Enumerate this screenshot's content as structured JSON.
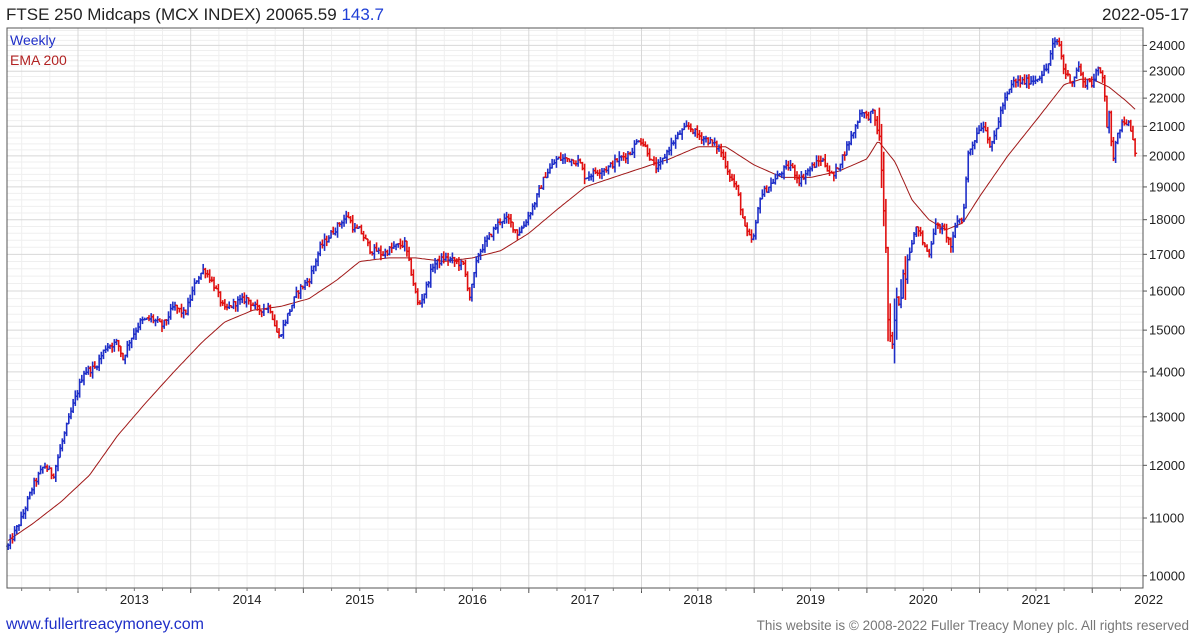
{
  "header": {
    "title": "FTSE 250 Midcaps (MCX INDEX)",
    "last_value": "20065.59",
    "change": "143.7",
    "date": "2022-05-17"
  },
  "legend": {
    "weekly": "Weekly",
    "ema": "EMA 200"
  },
  "footer": {
    "url": "www.fullertreacymoney.com",
    "copyright": "This website is © 2008-2022 Fuller Treacy Money plc. All rights reserved"
  },
  "colors": {
    "up": "#1f2fc8",
    "down": "#e01010",
    "ema": "#a01818",
    "grid": "#d8d8d8",
    "minor_grid": "#efefef"
  },
  "chart_data": {
    "type": "line",
    "frequency": "weekly",
    "style": "ohlc-bars",
    "y_scale": "log",
    "ylim": [
      9800,
      24700
    ],
    "xlim": [
      2012.37,
      2022.45
    ],
    "y_ticks": [
      10000,
      11000,
      12000,
      13000,
      14000,
      15000,
      16000,
      17000,
      18000,
      19000,
      20000,
      21000,
      22000,
      23000,
      24000
    ],
    "x_ticks": [
      2013,
      2014,
      2015,
      2016,
      2017,
      2018,
      2019,
      2020,
      2021,
      2022
    ],
    "grid": true,
    "legend_position": "top-left",
    "series": [
      {
        "name": "Weekly",
        "x": [
          2012.38,
          2012.5,
          2012.6,
          2012.7,
          2012.78,
          2012.85,
          2012.95,
          2013.05,
          2013.15,
          2013.25,
          2013.35,
          2013.4,
          2013.45,
          2013.55,
          2013.65,
          2013.75,
          2013.85,
          2013.95,
          2014.05,
          2014.12,
          2014.2,
          2014.3,
          2014.4,
          2014.5,
          2014.6,
          2014.7,
          2014.75,
          2014.78,
          2014.85,
          2014.95,
          2015.05,
          2015.15,
          2015.25,
          2015.35,
          2015.4,
          2015.45,
          2015.5,
          2015.55,
          2015.6,
          2015.65,
          2015.7,
          2015.8,
          2015.9,
          2015.95,
          2016.02,
          2016.08,
          2016.15,
          2016.25,
          2016.35,
          2016.42,
          2016.48,
          2016.5,
          2016.55,
          2016.65,
          2016.75,
          2016.82,
          2016.9,
          2016.95,
          2017.05,
          2017.15,
          2017.25,
          2017.35,
          2017.45,
          2017.5,
          2017.6,
          2017.7,
          2017.8,
          2017.9,
          2017.98,
          2018.05,
          2018.1,
          2018.15,
          2018.25,
          2018.35,
          2018.42,
          2018.5,
          2018.6,
          2018.7,
          2018.78,
          2018.85,
          2018.92,
          2018.97,
          2019.0,
          2019.05,
          2019.15,
          2019.25,
          2019.32,
          2019.4,
          2019.5,
          2019.6,
          2019.7,
          2019.8,
          2019.9,
          2019.95,
          2020.0,
          2020.05,
          2020.1,
          2020.13,
          2020.16,
          2020.19,
          2020.22,
          2020.25,
          2020.32,
          2020.4,
          2020.45,
          2020.5,
          2020.55,
          2020.6,
          2020.65,
          2020.7,
          2020.75,
          2020.8,
          2020.85,
          2020.9,
          2020.95,
          2021.0,
          2021.05,
          2021.1,
          2021.2,
          2021.3,
          2021.4,
          2021.5,
          2021.6,
          2021.65,
          2021.7,
          2021.75,
          2021.82,
          2021.88,
          2021.92,
          2021.97,
          2022.0,
          2022.05,
          2022.1,
          2022.13,
          2022.15,
          2022.18,
          2022.22,
          2022.28,
          2022.32,
          2022.36,
          2022.38
        ],
        "values": [
          10500,
          11000,
          11600,
          12000,
          11800,
          12400,
          13200,
          14000,
          14100,
          14600,
          14700,
          14300,
          14700,
          15200,
          15300,
          15100,
          15600,
          15400,
          16300,
          16600,
          16200,
          15500,
          15700,
          15800,
          15500,
          15600,
          15100,
          14800,
          15300,
          16000,
          16300,
          17200,
          17600,
          18000,
          18100,
          17700,
          17700,
          17400,
          17100,
          17100,
          17000,
          17200,
          17300,
          16600,
          15600,
          16000,
          16700,
          16900,
          16800,
          16700,
          15800,
          16200,
          17000,
          17500,
          18000,
          18000,
          17600,
          17800,
          18500,
          19400,
          19900,
          19900,
          19800,
          19300,
          19500,
          19600,
          19900,
          20100,
          20600,
          20200,
          19700,
          19600,
          20300,
          20800,
          21000,
          20700,
          20500,
          20200,
          19400,
          18900,
          17700,
          17400,
          17500,
          18700,
          19100,
          19500,
          19700,
          19200,
          19600,
          19900,
          19300,
          20100,
          21000,
          21600,
          21300,
          21500,
          20800,
          19600,
          17800,
          15100,
          14200,
          15400,
          16400,
          17400,
          17800,
          17300,
          17000,
          17800,
          17800,
          17600,
          17200,
          18000,
          18000,
          20100,
          20500,
          21000,
          21000,
          20200,
          21700,
          22600,
          22600,
          22700,
          23100,
          24000,
          24200,
          23000,
          22600,
          23200,
          22500,
          22700,
          22500,
          23100,
          22800,
          21000,
          21400,
          19800,
          20800,
          21200,
          21100,
          20500,
          20066
        ]
      },
      {
        "name": "EMA 200",
        "x": [
          2012.38,
          2012.6,
          2012.85,
          2013.1,
          2013.35,
          2013.6,
          2013.85,
          2014.1,
          2014.3,
          2014.55,
          2014.8,
          2015.05,
          2015.3,
          2015.5,
          2015.75,
          2016.0,
          2016.25,
          2016.5,
          2016.75,
          2017.0,
          2017.25,
          2017.5,
          2017.75,
          2018.0,
          2018.25,
          2018.5,
          2018.75,
          2019.0,
          2019.25,
          2019.5,
          2019.75,
          2020.0,
          2020.1,
          2020.25,
          2020.4,
          2020.55,
          2020.7,
          2020.85,
          2021.0,
          2021.25,
          2021.5,
          2021.75,
          2021.9,
          2022.0,
          2022.15,
          2022.3,
          2022.38
        ],
        "values": [
          10600,
          10900,
          11300,
          11800,
          12600,
          13300,
          14000,
          14700,
          15200,
          15500,
          15600,
          15800,
          16300,
          16800,
          16900,
          16900,
          16800,
          16900,
          17100,
          17600,
          18300,
          19000,
          19300,
          19600,
          19900,
          20300,
          20300,
          19700,
          19300,
          19300,
          19500,
          19900,
          20500,
          19800,
          18600,
          18000,
          17700,
          17900,
          18700,
          20000,
          21200,
          22500,
          22700,
          22700,
          22400,
          21900,
          21600
        ]
      }
    ]
  }
}
